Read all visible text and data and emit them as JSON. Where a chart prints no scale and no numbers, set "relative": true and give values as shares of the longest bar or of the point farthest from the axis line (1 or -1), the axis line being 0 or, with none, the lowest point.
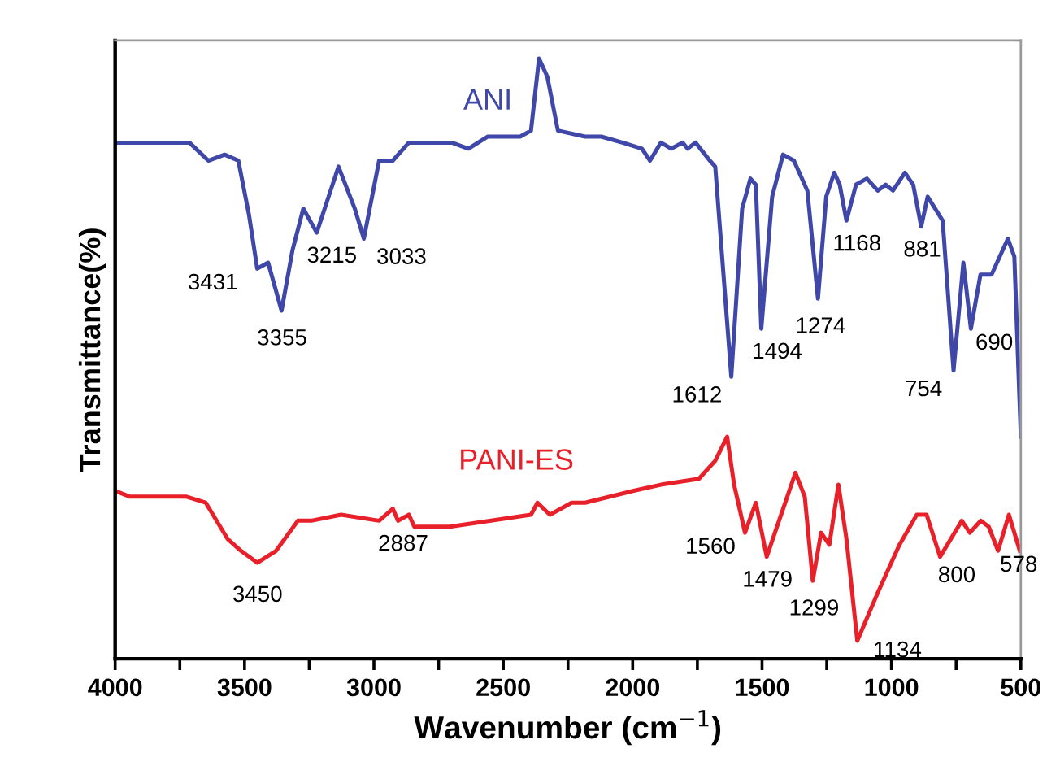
{
  "chart_data": {
    "type": "line",
    "relative": true,
    "xlabel": "Wavenumber (cm$^{−1}$)",
    "ylabel": "Transmittance(%)",
    "xlim": [
      4000,
      500
    ],
    "xticks": [
      4000,
      {
        "value": 3750,
        "label": null
      },
      3500,
      {
        "value": 3250,
        "label": null
      },
      3000,
      {
        "value": 2750,
        "label": null
      },
      2500,
      {
        "value": 2250,
        "label": null
      },
      2000,
      {
        "value": 1750,
        "label": null
      },
      1500,
      {
        "value": 1250,
        "label": null
      },
      1000,
      {
        "value": 750,
        "label": null
      },
      500
    ],
    "tick_labels": "x",
    "legend": false,
    "grid": false,
    "marker": "none",
    "line_style": "solid",
    "series": [
      {
        "name": "ANI",
        "color": "#3f48a8",
        "x": [
          4000,
          3755,
          3713,
          3640,
          3577,
          3524,
          3483,
          3451,
          3409,
          3357,
          3315,
          3273,
          3221,
          3137,
          3074,
          3039,
          2980,
          2927,
          2865,
          2812,
          2750,
          2699,
          2635,
          2561,
          2435,
          2393,
          2362,
          2330,
          2289,
          2184,
          2121,
          2039,
          1964,
          1933,
          1891,
          1851,
          1807,
          1788,
          1757,
          1702,
          1681,
          1619,
          1577,
          1545,
          1524,
          1503,
          1461,
          1419,
          1377,
          1325,
          1284,
          1252,
          1221,
          1200,
          1174,
          1137,
          1095,
          1053,
          1022,
          994,
          948,
          916,
          885,
          860,
          802,
          760,
          722,
          693,
          656,
          613,
          550,
          525,
          500
        ],
        "values": [
          0.86,
          0.86,
          0.86,
          0.83,
          0.84,
          0.83,
          0.74,
          0.65,
          0.66,
          0.58,
          0.68,
          0.75,
          0.71,
          0.82,
          0.75,
          0.7,
          0.83,
          0.83,
          0.86,
          0.86,
          0.86,
          0.86,
          0.85,
          0.87,
          0.87,
          0.88,
          1.0,
          0.97,
          0.88,
          0.87,
          0.87,
          0.86,
          0.85,
          0.83,
          0.86,
          0.85,
          0.86,
          0.85,
          0.86,
          0.83,
          0.82,
          0.47,
          0.75,
          0.8,
          0.79,
          0.55,
          0.77,
          0.84,
          0.83,
          0.78,
          0.6,
          0.77,
          0.81,
          0.79,
          0.73,
          0.79,
          0.8,
          0.78,
          0.79,
          0.78,
          0.81,
          0.79,
          0.72,
          0.77,
          0.73,
          0.48,
          0.66,
          0.55,
          0.64,
          0.64,
          0.7,
          0.67,
          0.37
        ]
      },
      {
        "name": "PANI-ES",
        "color": "#e8202a",
        "x": [
          4000,
          3943,
          3860,
          3724,
          3650,
          3566,
          3514,
          3451,
          3378,
          3294,
          3242,
          3127,
          2980,
          2927,
          2907,
          2865,
          2844,
          2707,
          2393,
          2368,
          2320,
          2236,
          2184,
          1996,
          1891,
          1744,
          1681,
          1635,
          1608,
          1566,
          1524,
          1482,
          1371,
          1335,
          1304,
          1272,
          1240,
          1205,
          1174,
          1132,
          1053,
          969,
          902,
          864,
          812,
          728,
          697,
          655,
          624,
          588,
          546,
          504
        ],
        "values": [
          0.28,
          0.27,
          0.27,
          0.27,
          0.26,
          0.2,
          0.18,
          0.16,
          0.18,
          0.23,
          0.23,
          0.24,
          0.23,
          0.25,
          0.23,
          0.24,
          0.22,
          0.22,
          0.24,
          0.26,
          0.24,
          0.26,
          0.26,
          0.28,
          0.29,
          0.3,
          0.33,
          0.37,
          0.29,
          0.21,
          0.26,
          0.17,
          0.31,
          0.27,
          0.13,
          0.21,
          0.19,
          0.29,
          0.2,
          0.03,
          0.11,
          0.19,
          0.24,
          0.24,
          0.17,
          0.23,
          0.21,
          0.23,
          0.22,
          0.18,
          0.24,
          0.18
        ]
      }
    ],
    "annotations": [
      {
        "text": "3431",
        "x": 3431,
        "y": 0.65
      },
      {
        "text": "3355",
        "x": 3355,
        "y": 0.58
      },
      {
        "text": "3215",
        "x": 3215,
        "y": 0.71
      },
      {
        "text": "3033",
        "x": 3033,
        "y": 0.7
      },
      {
        "text": "1612",
        "x": 1612,
        "y": 0.47
      },
      {
        "text": "1494",
        "x": 1494,
        "y": 0.55
      },
      {
        "text": "1274",
        "x": 1274,
        "y": 0.6
      },
      {
        "text": "1168",
        "x": 1168,
        "y": 0.73
      },
      {
        "text": "881",
        "x": 881,
        "y": 0.72
      },
      {
        "text": "754",
        "x": 754,
        "y": 0.48
      },
      {
        "text": "690",
        "x": 690,
        "y": 0.55
      },
      {
        "text": "3450",
        "x": 3450,
        "y": 0.16
      },
      {
        "text": "2887",
        "x": 2887,
        "y": 0.23
      },
      {
        "text": "1560",
        "x": 1560,
        "y": 0.21
      },
      {
        "text": "1479",
        "x": 1479,
        "y": 0.17
      },
      {
        "text": "1299",
        "x": 1299,
        "y": 0.13
      },
      {
        "text": "1134",
        "x": 1134,
        "y": 0.03
      },
      {
        "text": "800",
        "x": 800,
        "y": 0.17
      },
      {
        "text": "578",
        "x": 578,
        "y": 0.18
      }
    ]
  }
}
